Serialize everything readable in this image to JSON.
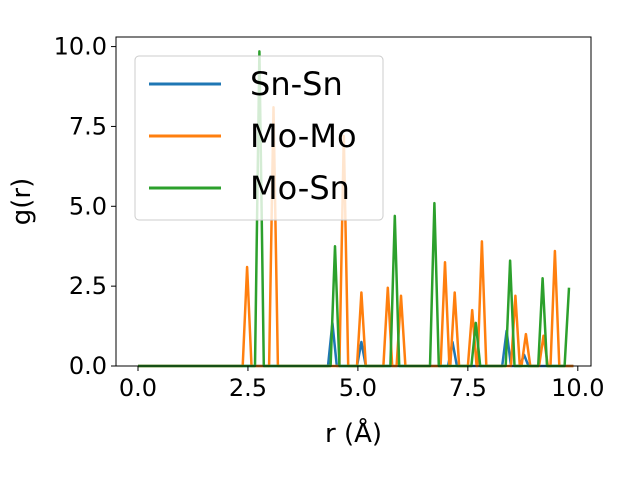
{
  "chart_data": {
    "type": "line",
    "title": "",
    "xlabel": "r (Å)",
    "ylabel": "g(r)",
    "xlim": [
      -0.5,
      10.3
    ],
    "ylim": [
      0,
      10.3
    ],
    "xticks": [
      0.0,
      2.5,
      5.0,
      7.5,
      10.0
    ],
    "yticks": [
      0.0,
      2.5,
      5.0,
      7.5,
      10.0
    ],
    "xtick_labels": [
      "0.0",
      "2.5",
      "5.0",
      "7.5",
      "10.0"
    ],
    "ytick_labels": [
      "0.0",
      "2.5",
      "5.0",
      "7.5",
      "10.0"
    ],
    "grid": false,
    "legend": "upper-left",
    "series": [
      {
        "name": "Sn-Sn",
        "color": "#1f77b4",
        "x": [
          0.0,
          4.32,
          4.42,
          4.52,
          4.98,
          5.08,
          5.18,
          7.05,
          7.15,
          7.25,
          8.28,
          8.38,
          8.48,
          8.68,
          8.78,
          8.88,
          9.9
        ],
        "y": [
          0,
          0,
          1.35,
          0,
          0,
          0.75,
          0,
          0,
          0.75,
          0,
          0,
          1.1,
          0,
          0,
          0.35,
          0,
          0
        ]
      },
      {
        "name": "Mo-Mo",
        "color": "#ff7f0e",
        "x": [
          0.0,
          2.38,
          2.48,
          2.58,
          2.98,
          3.08,
          3.18,
          4.58,
          4.68,
          4.78,
          4.98,
          5.08,
          5.18,
          5.58,
          5.68,
          5.78,
          5.88,
          5.98,
          6.08,
          6.88,
          6.98,
          7.08,
          7.1,
          7.2,
          7.3,
          7.5,
          7.6,
          7.7,
          7.72,
          7.82,
          7.92,
          8.48,
          8.58,
          8.68,
          8.72,
          8.82,
          8.92,
          9.12,
          9.22,
          9.32,
          9.38,
          9.48,
          9.58,
          9.9
        ],
        "y": [
          0,
          0,
          3.1,
          0,
          0,
          8.1,
          0,
          0,
          7.2,
          0,
          0,
          2.3,
          0,
          0,
          2.45,
          0,
          0,
          2.2,
          0,
          0,
          3.25,
          0,
          0,
          2.3,
          0,
          0,
          1.75,
          0,
          0,
          3.9,
          0,
          0,
          2.2,
          0,
          0,
          1.0,
          0,
          0,
          0.95,
          0,
          0,
          3.6,
          0,
          0
        ]
      },
      {
        "name": "Mo-Sn",
        "color": "#2ca02c",
        "x": [
          0.0,
          2.66,
          2.76,
          2.86,
          4.38,
          4.48,
          4.58,
          5.74,
          5.84,
          5.94,
          6.64,
          6.74,
          6.84,
          7.58,
          7.68,
          7.78,
          8.36,
          8.46,
          8.56,
          9.1,
          9.2,
          9.3,
          9.7,
          9.8
        ],
        "y": [
          0,
          0,
          9.85,
          0,
          0,
          3.75,
          0,
          0,
          4.7,
          0,
          0,
          5.1,
          0,
          0,
          1.35,
          0,
          0,
          3.3,
          0,
          0,
          2.75,
          0,
          0,
          2.45
        ]
      }
    ]
  }
}
